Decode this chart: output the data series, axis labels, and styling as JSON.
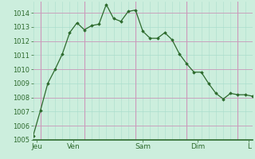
{
  "x_values": [
    0,
    1,
    2,
    3,
    4,
    5,
    6,
    7,
    8,
    9,
    10,
    11,
    12,
    13,
    14,
    15,
    16,
    17,
    18,
    19,
    20,
    21,
    22,
    23,
    24,
    25,
    26,
    27,
    28,
    29,
    30
  ],
  "y_values": [
    1005.3,
    1007.1,
    1009.0,
    1010.0,
    1011.1,
    1012.6,
    1013.3,
    1012.8,
    1013.1,
    1013.2,
    1014.6,
    1013.6,
    1013.4,
    1014.1,
    1014.2,
    1012.7,
    1012.2,
    1012.2,
    1012.6,
    1012.1,
    1011.1,
    1010.4,
    1009.8,
    1009.8,
    1009.0,
    1008.3,
    1007.9,
    1008.3,
    1008.2,
    1008.2,
    1008.1
  ],
  "line_color": "#2d6a2d",
  "marker_color": "#2d6a2d",
  "bg_color": "#cceedd",
  "grid_minor_h_color": "#aaddcc",
  "grid_minor_v_color": "#aaddcc",
  "grid_major_v_color": "#cc99bb",
  "grid_major_h_color": "#cc99bb",
  "axis_label_color": "#2d6a2d",
  "spine_color": "#2d6a2d",
  "ylim": [
    1005,
    1014.8
  ],
  "xlim": [
    0,
    30
  ],
  "yticks": [
    1005,
    1006,
    1007,
    1008,
    1009,
    1010,
    1011,
    1012,
    1013,
    1014
  ],
  "day_labels": [
    "Jeu",
    "Ven",
    "Sam",
    "Dim",
    "L"
  ],
  "day_positions": [
    0.5,
    5.5,
    15,
    22.5,
    29.5
  ],
  "vline_major_positions": [
    1,
    7,
    14,
    21,
    28
  ],
  "tick_fontsize": 6,
  "label_fontsize": 6.5
}
